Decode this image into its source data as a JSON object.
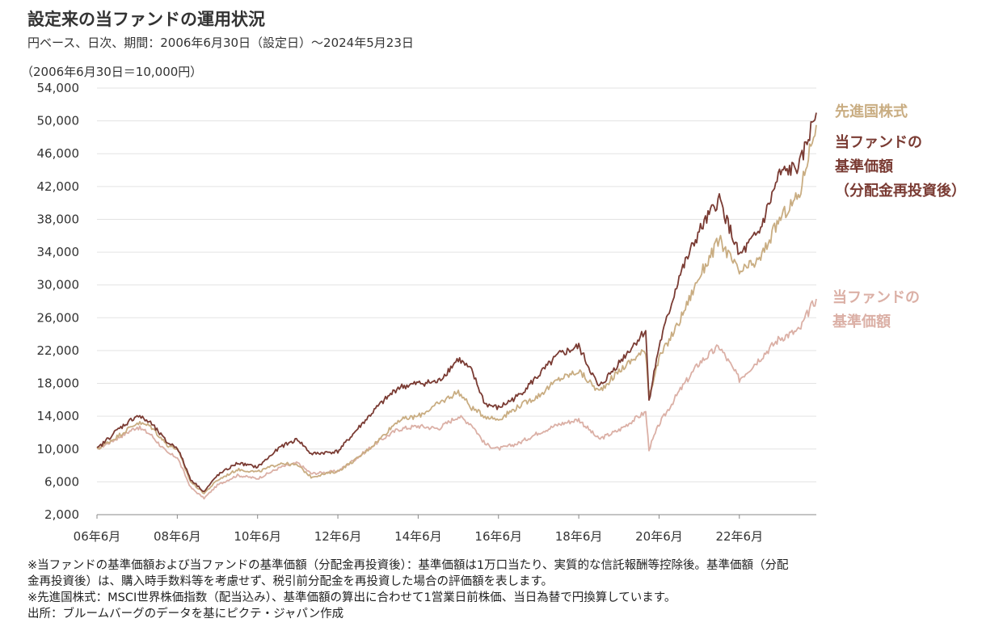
{
  "header": {
    "title": "設定来の当ファンドの運用状況",
    "subtitle": "円ベース、日次、期間：2006年6月30日（設定日）～2024年5月23日",
    "unit": "（2006年6月30日＝10,000円）"
  },
  "colors": {
    "msci": "#c9ad82",
    "nav_reinvest": "#7a3b33",
    "nav": "#dbb0a6"
  },
  "legend": {
    "msci_label": "先進国株式",
    "nav_reinvest_line1": "当ファンドの",
    "nav_reinvest_line2": "基準価額",
    "nav_reinvest_line3": "（分配金再投資後）",
    "nav_line1": "当ファンドの",
    "nav_line2": "基準価額"
  },
  "notes": [
    "※当ファンドの基準価額および当ファンドの基準価額（分配金再投資後）：基準価額は1万口当たり、実質的な信託報酬等控除後。基準価額（分配",
    "金再投資後）は、購入時手数料等を考慮せず、税引前分配金を再投資した場合の評価額を表します。",
    "※先進国株式：MSCI世界株価指数（配当込み）、基準価額の算出に合わせて1営業日前株価、当日為替で円換算しています。",
    "出所：ブルームバーグのデータを基にピクテ・ジャパン作成"
  ],
  "chart_data": {
    "type": "line",
    "x_range": [
      "2006-06",
      "2024-05"
    ],
    "ylim": [
      2000,
      54000
    ],
    "yticks": [
      "54,000",
      "50,000",
      "46,000",
      "42,000",
      "38,000",
      "34,000",
      "30,000",
      "26,000",
      "22,000",
      "18,000",
      "14,000",
      "10,000",
      "6,000",
      "2,000"
    ],
    "ytick_values": [
      54000,
      50000,
      46000,
      42000,
      38000,
      34000,
      30000,
      26000,
      22000,
      18000,
      14000,
      10000,
      6000,
      2000
    ],
    "xticks": [
      "06年6月",
      "08年6月",
      "10年6月",
      "12年6月",
      "14年6月",
      "16年6月",
      "18年6月",
      "20年6月",
      "22年6月"
    ],
    "xtick_dates": [
      "2006-06",
      "2008-06",
      "2010-06",
      "2012-06",
      "2014-06",
      "2016-06",
      "2018-06",
      "2020-06",
      "2022-06"
    ],
    "grid": true,
    "series": [
      {
        "key": "msci",
        "name": "先進国株式",
        "x": [
          "2006-06",
          "2006-12",
          "2007-06",
          "2007-10",
          "2008-03",
          "2008-06",
          "2008-10",
          "2009-02",
          "2009-06",
          "2009-12",
          "2010-06",
          "2011-01",
          "2011-06",
          "2011-10",
          "2012-06",
          "2012-12",
          "2013-06",
          "2013-12",
          "2014-06",
          "2014-12",
          "2015-06",
          "2015-10",
          "2016-02",
          "2016-06",
          "2016-12",
          "2017-06",
          "2017-12",
          "2018-06",
          "2018-12",
          "2019-06",
          "2019-12",
          "2020-02",
          "2020-03",
          "2020-06",
          "2020-12",
          "2021-06",
          "2021-12",
          "2022-06",
          "2022-12",
          "2023-06",
          "2023-12",
          "2024-03",
          "2024-05"
        ],
        "values": [
          10000,
          11500,
          13200,
          12800,
          10500,
          10000,
          6000,
          4600,
          6200,
          7500,
          7200,
          8300,
          8000,
          6600,
          7300,
          8900,
          11000,
          13500,
          14000,
          15500,
          17000,
          15000,
          14000,
          13600,
          15200,
          16500,
          18500,
          19500,
          17000,
          19500,
          21500,
          22000,
          16500,
          21000,
          25500,
          31000,
          35500,
          31500,
          33000,
          38000,
          41000,
          46500,
          49500
        ]
      },
      {
        "key": "nav_reinvest",
        "name": "当ファンドの 基準価額 （分配金再投資後）",
        "x": [
          "2006-06",
          "2006-12",
          "2007-06",
          "2007-10",
          "2008-03",
          "2008-06",
          "2008-10",
          "2009-02",
          "2009-06",
          "2009-12",
          "2010-06",
          "2011-01",
          "2011-06",
          "2011-10",
          "2012-06",
          "2012-12",
          "2013-06",
          "2013-12",
          "2014-06",
          "2014-12",
          "2015-06",
          "2015-10",
          "2016-02",
          "2016-06",
          "2016-12",
          "2017-06",
          "2017-12",
          "2018-06",
          "2018-12",
          "2019-06",
          "2019-12",
          "2020-02",
          "2020-03",
          "2020-06",
          "2020-12",
          "2021-06",
          "2021-12",
          "2022-06",
          "2022-12",
          "2023-06",
          "2023-12",
          "2024-03",
          "2024-05"
        ],
        "values": [
          10000,
          12300,
          14100,
          13200,
          10800,
          10200,
          6300,
          4800,
          6800,
          8300,
          7800,
          10300,
          11200,
          9400,
          9700,
          12500,
          15200,
          17500,
          18000,
          18200,
          21000,
          19500,
          15500,
          15000,
          16500,
          19000,
          21500,
          22500,
          17500,
          20500,
          23500,
          24500,
          16000,
          22500,
          31000,
          36500,
          40500,
          33500,
          36500,
          43500,
          44500,
          48500,
          51000
        ]
      },
      {
        "key": "nav",
        "name": "当ファンドの 基準価額",
        "x": [
          "2006-06",
          "2006-12",
          "2007-06",
          "2007-10",
          "2008-03",
          "2008-06",
          "2008-10",
          "2009-02",
          "2009-06",
          "2009-12",
          "2010-06",
          "2011-01",
          "2011-06",
          "2011-10",
          "2012-06",
          "2012-12",
          "2013-06",
          "2013-12",
          "2014-06",
          "2014-12",
          "2015-06",
          "2015-10",
          "2016-02",
          "2016-06",
          "2016-12",
          "2017-06",
          "2017-12",
          "2018-06",
          "2018-12",
          "2019-06",
          "2019-12",
          "2020-02",
          "2020-03",
          "2020-06",
          "2020-12",
          "2021-06",
          "2021-12",
          "2022-06",
          "2022-12",
          "2023-06",
          "2023-12",
          "2024-03",
          "2024-05"
        ],
        "values": [
          10000,
          11300,
          12700,
          11800,
          9500,
          9000,
          5300,
          4000,
          5600,
          6800,
          6400,
          7800,
          8300,
          7000,
          7300,
          9000,
          10900,
          12400,
          12800,
          12500,
          14000,
          13000,
          10600,
          10000,
          10700,
          12000,
          13000,
          13600,
          11200,
          12300,
          14000,
          14500,
          10000,
          13000,
          17000,
          20500,
          22500,
          18500,
          21000,
          23500,
          24500,
          27000,
          28300
        ]
      }
    ]
  }
}
